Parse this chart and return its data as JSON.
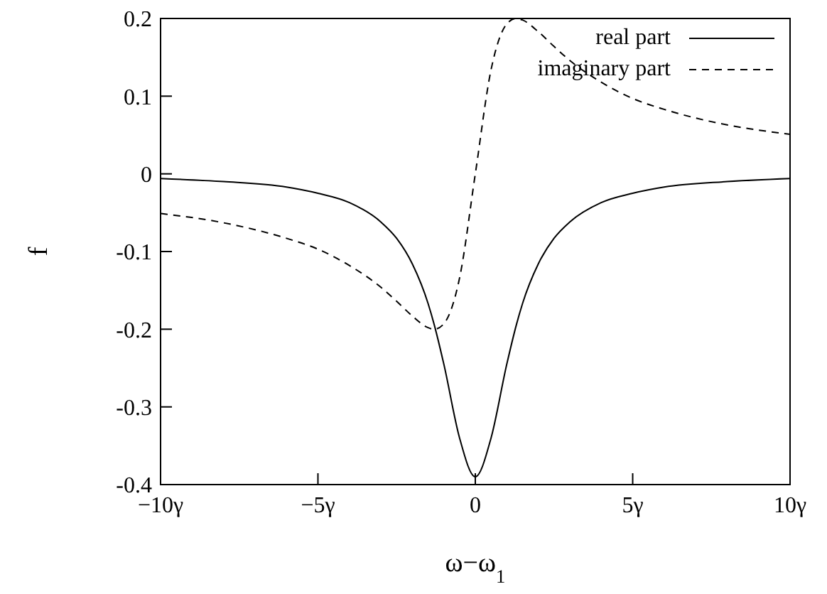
{
  "chart_data": {
    "type": "line",
    "xlabel": "ω−ω$_{1}$",
    "ylabel": "f",
    "x": [
      -10,
      -8,
      -6,
      -5,
      -4,
      -3,
      -2.5,
      -2,
      -1.5,
      -1.3,
      -1,
      -0.5,
      0,
      0.5,
      1,
      1.3,
      1.5,
      2,
      2.5,
      3,
      4,
      5,
      6,
      8,
      10
    ],
    "series": [
      {
        "name": "real part",
        "color": "#000000",
        "line_style": "solid",
        "values": [
          -0.006,
          -0.01,
          -0.017,
          -0.025,
          -0.037,
          -0.062,
          -0.083,
          -0.116,
          -0.167,
          -0.195,
          -0.245,
          -0.34,
          -0.39,
          -0.34,
          -0.245,
          -0.195,
          -0.167,
          -0.116,
          -0.083,
          -0.062,
          -0.037,
          -0.025,
          -0.017,
          -0.01,
          -0.006
        ]
      },
      {
        "name": "imaginary part",
        "color": "#000000",
        "line_style": "dashed",
        "values": [
          -0.051,
          -0.063,
          -0.083,
          -0.097,
          -0.118,
          -0.146,
          -0.164,
          -0.183,
          -0.198,
          -0.2,
          -0.193,
          -0.134,
          0,
          0.134,
          0.193,
          0.2,
          0.198,
          0.183,
          0.164,
          0.146,
          0.118,
          0.097,
          0.083,
          0.063,
          0.051
        ]
      }
    ],
    "xlim": [
      -10,
      10
    ],
    "xticks": [
      {
        "value": -10,
        "label": "−10γ"
      },
      {
        "value": -5,
        "label": "−5γ"
      },
      0,
      {
        "value": 5,
        "label": "5γ"
      },
      {
        "value": 10,
        "label": "10γ"
      }
    ],
    "ylim": [
      -0.4,
      0.2
    ],
    "yticks": [
      -0.4,
      -0.3,
      -0.2,
      -0.1,
      0,
      0.1,
      0.2
    ],
    "legend": "top right",
    "marker": "none"
  }
}
